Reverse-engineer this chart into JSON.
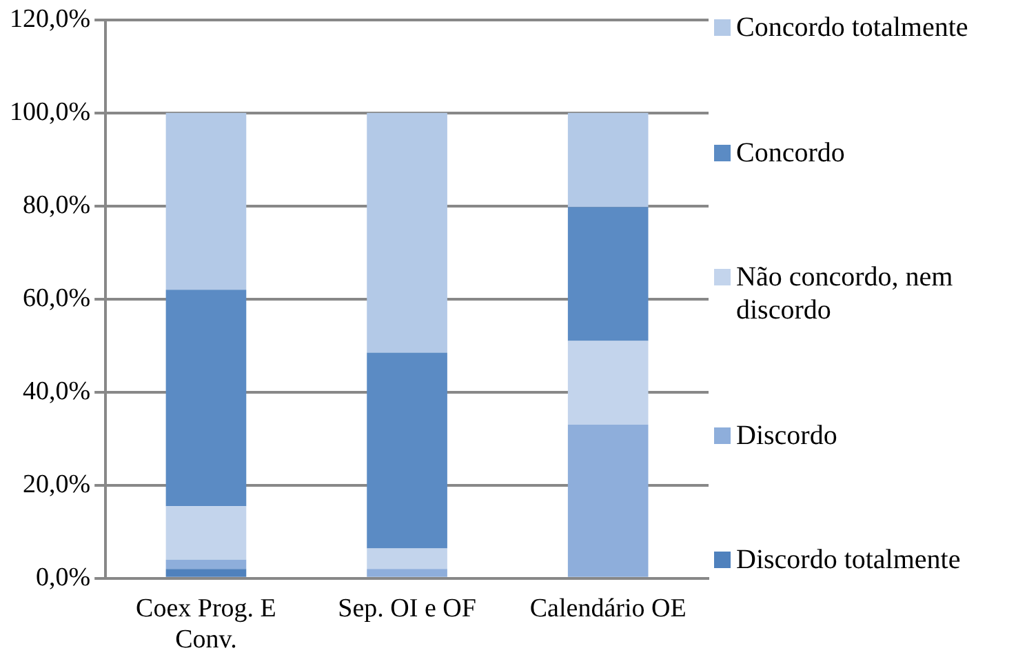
{
  "chart_data": {
    "type": "bar",
    "stacked": true,
    "categories": [
      "Coex Prog. E Conv.",
      "Sep.  OI e OF",
      "Calendário OE"
    ],
    "series": [
      {
        "name": "Discordo totalmente",
        "color": "#4f81bd",
        "values": [
          2,
          0,
          0
        ]
      },
      {
        "name": "Discordo",
        "color": "#8eaedb",
        "values": [
          2,
          2,
          33
        ]
      },
      {
        "name": "Não concordo, nem discordo",
        "color": "#c3d4ec",
        "values": [
          11.5,
          4.4,
          18
        ]
      },
      {
        "name": "Concordo",
        "color": "#5b8bc4",
        "values": [
          46.5,
          42.1,
          28.8
        ]
      },
      {
        "name": "Concordo totalmente",
        "color": "#b3c9e7",
        "values": [
          38,
          51.5,
          20.2
        ]
      }
    ],
    "ylim": [
      0,
      120
    ],
    "yticks": [
      {
        "value": 0,
        "label": "0,0%"
      },
      {
        "value": 20,
        "label": "20,0%"
      },
      {
        "value": 40,
        "label": "40,0%"
      },
      {
        "value": 60,
        "label": "60,0%"
      },
      {
        "value": 80,
        "label": "80,0%"
      },
      {
        "value": 100,
        "label": "100,0%"
      },
      {
        "value": 120,
        "label": "120,0%"
      }
    ],
    "grid": "y",
    "legend": "right"
  }
}
